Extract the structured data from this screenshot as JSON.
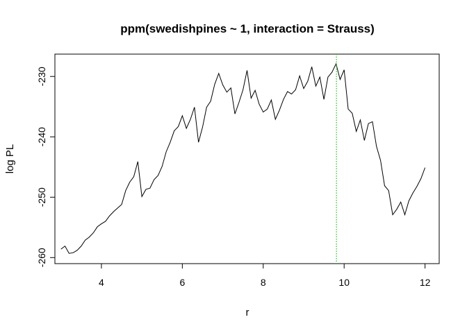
{
  "chart_data": {
    "type": "line",
    "title": "ppm(swedishpines ~ 1, interaction = Strauss)",
    "xlabel": "r",
    "ylabel": "log PL",
    "xlim": [
      2.85,
      12.35
    ],
    "ylim": [
      -261.0,
      -226.3
    ],
    "x_ticks": [
      4,
      6,
      8,
      10,
      12
    ],
    "y_ticks": [
      -230,
      -240,
      -250,
      -260
    ],
    "grid": false,
    "legend": "none",
    "optimum_r": 9.81,
    "colors": {
      "line": "#000000",
      "optimum": "#22cc22",
      "axis": "#000000"
    },
    "series": [
      {
        "x": [
          3.0,
          3.1,
          3.2,
          3.3,
          3.4,
          3.5,
          3.6,
          3.7,
          3.8,
          3.9,
          4.0,
          4.1,
          4.2,
          4.3,
          4.4,
          4.5,
          4.6,
          4.7,
          4.8,
          4.9,
          5.0,
          5.1,
          5.2,
          5.3,
          5.4,
          5.5,
          5.6,
          5.7,
          5.8,
          5.9,
          6.0,
          6.1,
          6.2,
          6.3,
          6.4,
          6.5,
          6.6,
          6.7,
          6.8,
          6.9,
          7.0,
          7.1,
          7.2,
          7.3,
          7.4,
          7.5,
          7.6,
          7.7,
          7.8,
          7.9,
          8.0,
          8.1,
          8.2,
          8.3,
          8.4,
          8.5,
          8.6,
          8.7,
          8.8,
          8.9,
          9.0,
          9.1,
          9.2,
          9.3,
          9.4,
          9.5,
          9.6,
          9.7,
          9.8,
          9.9,
          10.0,
          10.1,
          10.2,
          10.3,
          10.4,
          10.5,
          10.6,
          10.7,
          10.8,
          10.9,
          11.0,
          11.1,
          11.2,
          11.3,
          11.4,
          11.5,
          11.6,
          11.7,
          11.8,
          11.9,
          12.0
        ],
        "y": [
          -258.6,
          -258.1,
          -259.3,
          -259.2,
          -258.8,
          -258.1,
          -257.1,
          -256.6,
          -255.9,
          -254.9,
          -254.4,
          -254.0,
          -253.1,
          -252.4,
          -251.8,
          -251.2,
          -248.9,
          -247.5,
          -246.6,
          -244.1,
          -249.9,
          -248.7,
          -248.5,
          -247.1,
          -246.4,
          -244.9,
          -242.5,
          -240.9,
          -239.0,
          -238.3,
          -236.5,
          -238.6,
          -237.1,
          -235.1,
          -240.9,
          -238.4,
          -235.1,
          -234.1,
          -231.3,
          -229.5,
          -231.4,
          -232.6,
          -231.9,
          -236.2,
          -234.3,
          -232.2,
          -229.0,
          -233.6,
          -232.3,
          -234.6,
          -235.9,
          -235.4,
          -233.9,
          -237.1,
          -235.6,
          -233.8,
          -232.5,
          -232.9,
          -232.2,
          -229.9,
          -232.0,
          -230.8,
          -228.4,
          -231.6,
          -230.1,
          -233.8,
          -230.1,
          -229.3,
          -227.9,
          -230.5,
          -228.9,
          -235.4,
          -236.1,
          -239.1,
          -237.2,
          -240.6,
          -237.8,
          -237.5,
          -241.6,
          -243.9,
          -248.1,
          -248.9,
          -252.9,
          -252.0,
          -250.8,
          -252.9,
          -250.6,
          -249.3,
          -248.2,
          -246.9,
          -245.1
        ]
      }
    ]
  }
}
